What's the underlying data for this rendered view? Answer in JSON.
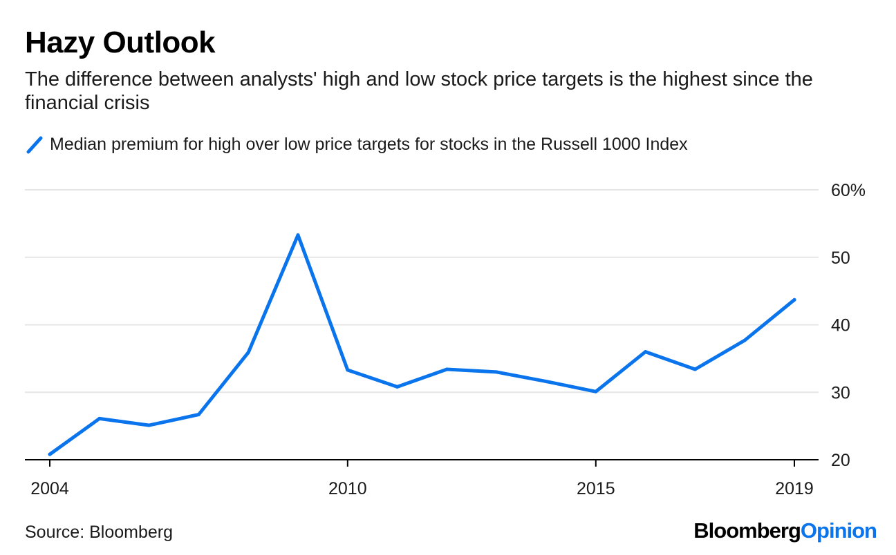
{
  "title": "Hazy Outlook",
  "subtitle": "The difference between analysts' high and low stock price targets is the highest since the financial crisis",
  "legend": {
    "label": "Median premium for high over low price targets for stocks in the Russell 1000 Index"
  },
  "source": "Source: Bloomberg",
  "brand": {
    "part1": "Bloomberg",
    "part2": "Opinion"
  },
  "colors": {
    "series": "#0a74ec",
    "grid": "#e6e6e6",
    "axis": "#000000",
    "brand_accent": "#0a74ec"
  },
  "chart_data": {
    "type": "line",
    "title": "Hazy Outlook",
    "subtitle": "The difference between analysts' high and low stock price targets is the highest since the financial crisis",
    "xlabel": "",
    "ylabel": "",
    "x": [
      2004,
      2005,
      2006,
      2007,
      2008,
      2009,
      2010,
      2011,
      2012,
      2013,
      2014,
      2015,
      2016,
      2017,
      2018,
      2019
    ],
    "series": [
      {
        "name": "Median premium for high over low price targets for stocks in the Russell 1000 Index",
        "values": [
          20.8,
          26.1,
          25.1,
          26.7,
          35.9,
          53.3,
          33.3,
          30.8,
          33.4,
          33.0,
          31.6,
          30.1,
          36.0,
          33.4,
          37.7,
          43.7
        ]
      }
    ],
    "xlim": [
      2004,
      2019.5
    ],
    "ylim": [
      20,
      60
    ],
    "x_ticks": [
      2004,
      2010,
      2015,
      2019
    ],
    "x_tick_labels": [
      "2004",
      "2010",
      "2015",
      "2019"
    ],
    "y_ticks": [
      20,
      30,
      40,
      50,
      60
    ],
    "y_tick_labels": [
      "20",
      "30",
      "40",
      "50",
      "60%"
    ],
    "grid": true,
    "legend_position": "top-left"
  }
}
